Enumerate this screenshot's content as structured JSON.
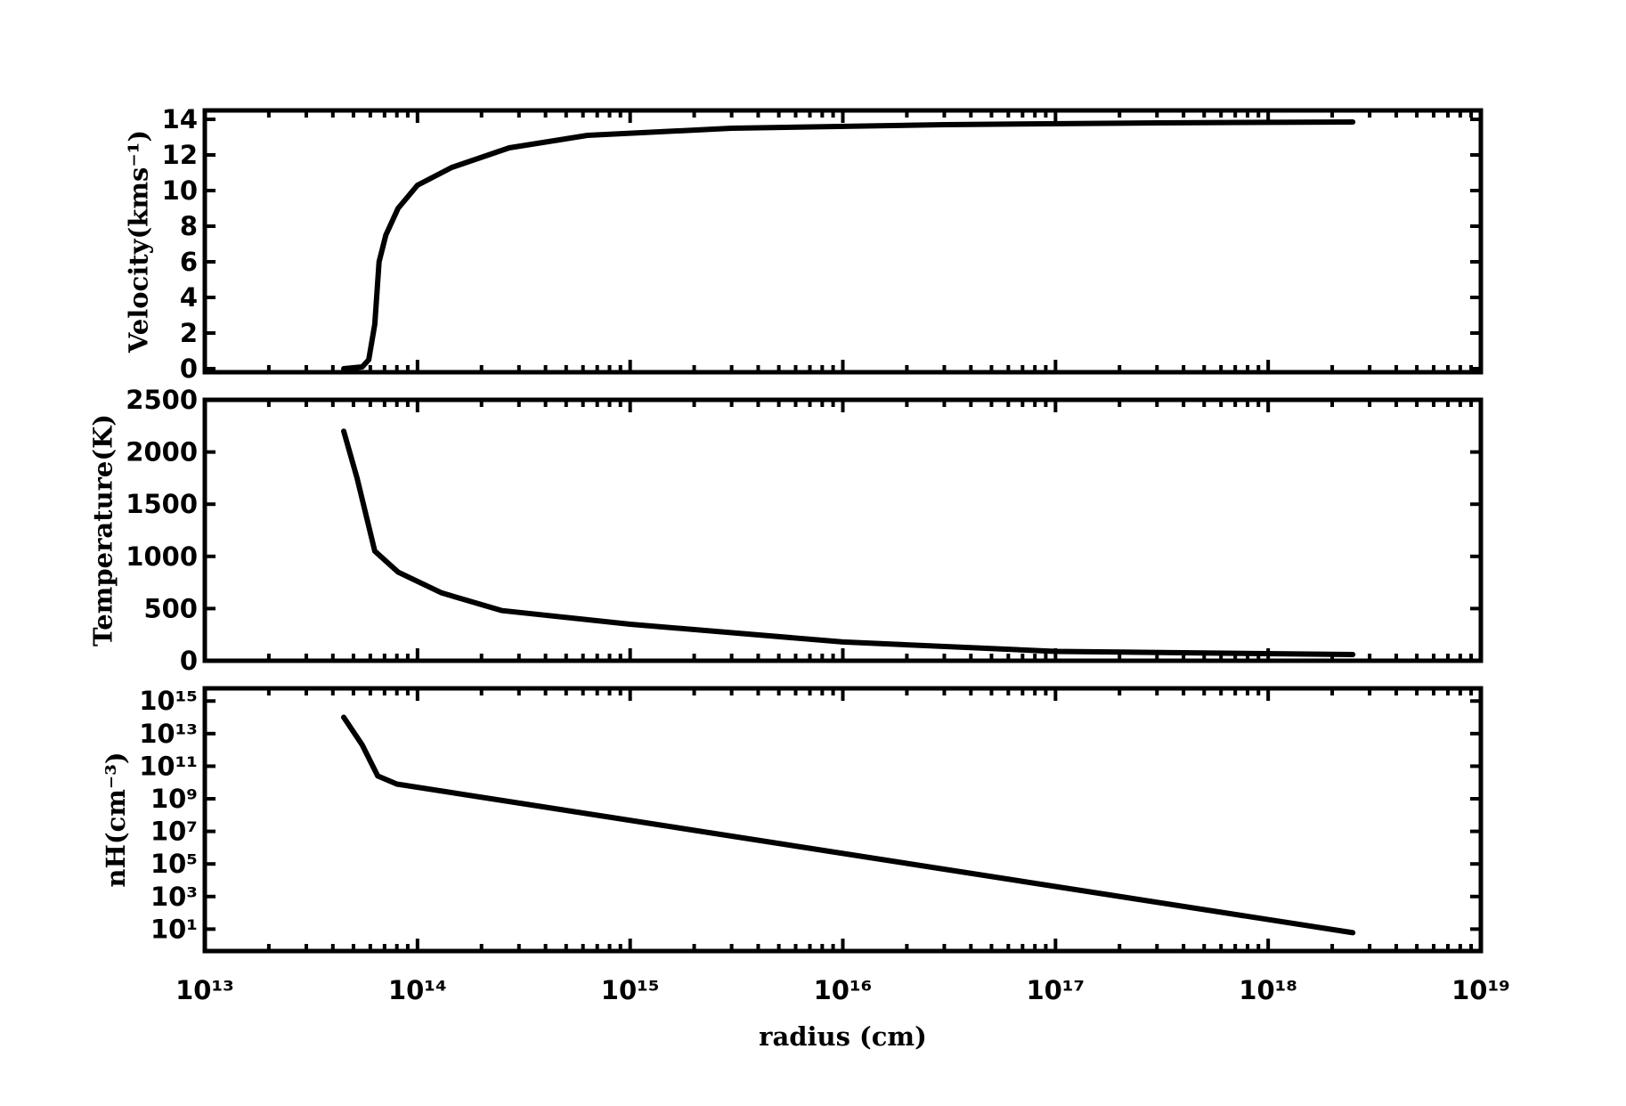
{
  "chart_data": [
    {
      "type": "line",
      "ylabel": "Velocity(kms⁻¹)",
      "color": "#000000",
      "x": [
        45000000000000.0,
        55000000000000.0,
        59000000000000.0,
        63000000000000.0,
        66000000000000.0,
        71000000000000.0,
        81000000000000.0,
        100000000000000.0,
        145000000000000.0,
        270000000000000.0,
        630000000000000.0,
        3000000000000000.0,
        3e+16,
        3e+17,
        2.5e+18
      ],
      "values": [
        0,
        0.1,
        0.5,
        2.5,
        6,
        7.5,
        9,
        10.3,
        11.3,
        12.4,
        13.1,
        13.5,
        13.7,
        13.8,
        13.85
      ],
      "ylim": [
        -0.2,
        14.5
      ],
      "yticks": [
        0,
        2,
        4,
        6,
        8,
        10,
        12,
        14
      ]
    },
    {
      "type": "line",
      "ylabel": "Temperature(K)",
      "color": "#000000",
      "x": [
        45000000000000.0,
        52000000000000.0,
        63000000000000.0,
        81000000000000.0,
        130000000000000.0,
        250000000000000.0,
        1000000000000000.0,
        1e+16,
        1e+17,
        2.5e+18
      ],
      "values": [
        2200,
        1750,
        1050,
        850,
        650,
        480,
        350,
        180,
        90,
        60
      ],
      "ylim": [
        0,
        2500
      ],
      "yticks": [
        0,
        500,
        1000,
        1500,
        2000,
        2500
      ]
    },
    {
      "type": "line",
      "ylabel": "nH(cm⁻³)",
      "color": "#000000",
      "yscale": "log",
      "x": [
        45000000000000.0,
        55000000000000.0,
        65000000000000.0,
        80000000000000.0,
        2.5e+18
      ],
      "values": [
        100000000000000.0,
        2000000000000.0,
        25000000000.0,
        8000000000.0,
        6
      ],
      "ylim": [
        0.45,
        6000000000000000.0
      ],
      "yticks": [
        {
          "value": 10,
          "label": "10¹"
        },
        {
          "value": 1000,
          "label": "10³"
        },
        {
          "value": 100000.0,
          "label": "10⁵"
        },
        {
          "value": 10000000.0,
          "label": "10⁷"
        },
        {
          "value": 1000000000.0,
          "label": "10⁹"
        },
        {
          "value": 100000000000.0,
          "label": "10¹¹"
        },
        {
          "value": 10000000000000.0,
          "label": "10¹³"
        },
        {
          "value": 1000000000000000.0,
          "label": "10¹⁵"
        }
      ],
      "xlabel": "radius (cm)",
      "xscale": "log",
      "xlim": [
        10000000000000.0,
        1e+19
      ],
      "xticks": [
        {
          "value": 10000000000000.0,
          "label": "10¹³"
        },
        {
          "value": 100000000000000.0,
          "label": "10¹⁴"
        },
        {
          "value": 1000000000000000.0,
          "label": "10¹⁵"
        },
        {
          "value": 1e+16,
          "label": "10¹⁶"
        },
        {
          "value": 1e+17,
          "label": "10¹⁷"
        },
        {
          "value": 1e+18,
          "label": "10¹⁸"
        },
        {
          "value": 1e+19,
          "label": "10¹⁹"
        }
      ],
      "xminorticks": [
        20000000000000.0,
        30000000000000.0,
        40000000000000.0,
        50000000000000.0,
        60000000000000.0,
        70000000000000.0,
        80000000000000.0,
        90000000000000.0,
        200000000000000.0,
        300000000000000.0,
        400000000000000.0,
        500000000000000.0,
        600000000000000.0,
        700000000000000.0,
        800000000000000.0,
        900000000000000.0,
        2000000000000000.0,
        3000000000000000.0,
        4000000000000000.0,
        5000000000000000.0,
        6000000000000000.0,
        7000000000000000.0,
        8000000000000000.0,
        9000000000000000.0,
        2e+16,
        3e+16,
        4e+16,
        5e+16,
        6e+16,
        7e+16,
        8e+16,
        9e+16,
        2e+17,
        3e+17,
        4e+17,
        5e+17,
        6e+17,
        7e+17,
        8e+17,
        9e+17,
        2e+18,
        3e+18,
        4e+18,
        5e+18,
        6e+18,
        7e+18,
        8e+18,
        9e+18
      ]
    }
  ]
}
